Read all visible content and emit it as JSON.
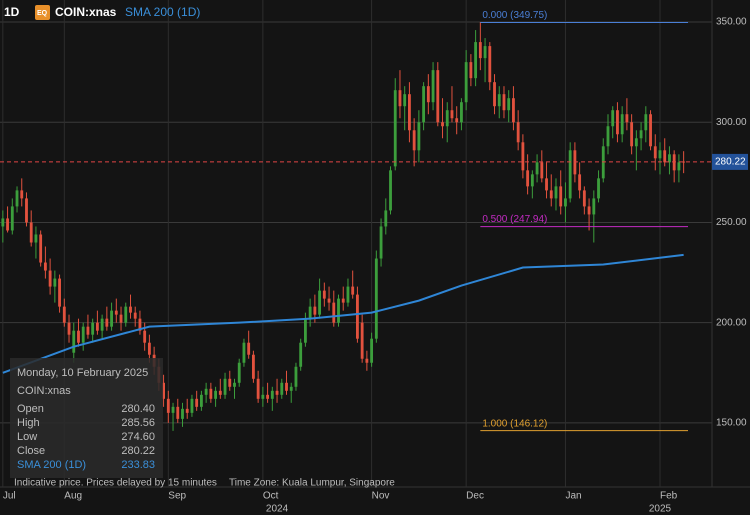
{
  "header": {
    "interval": "1D",
    "badge": "EQ",
    "symbol": "COIN:xnas",
    "indicator": "SMA 200 (1D)"
  },
  "chart_data": {
    "type": "candlestick",
    "up_color": "#3c9e3c",
    "down_color": "#e2523e",
    "grid": true,
    "xlim": [
      -0.6,
      150
    ],
    "ylim": [
      118,
      361
    ],
    "yticks": [
      {
        "value": 150,
        "label": "150.00"
      },
      {
        "value": 200,
        "label": "200.00"
      },
      {
        "value": 250,
        "label": "250.00"
      },
      {
        "value": 300,
        "label": "300.00"
      },
      {
        "value": 350,
        "label": "350.00"
      }
    ],
    "xticks": [
      {
        "value": 0,
        "label": "Jul"
      },
      {
        "value": 13,
        "label": "Aug"
      },
      {
        "value": 35,
        "label": "Sep"
      },
      {
        "value": 55,
        "label": "Oct"
      },
      {
        "value": 78,
        "label": "Nov"
      },
      {
        "value": 98,
        "label": "Dec"
      },
      {
        "value": 119,
        "label": "Jan"
      },
      {
        "value": 139,
        "label": "Feb"
      }
    ],
    "year_ticks": [
      {
        "value": 58,
        "label": "2024"
      },
      {
        "value": 139,
        "label": "2025"
      }
    ],
    "candles": [
      [
        248,
        256,
        240,
        252
      ],
      [
        252,
        258,
        245,
        246
      ],
      [
        246,
        262,
        244,
        258
      ],
      [
        258,
        268,
        255,
        266
      ],
      [
        266,
        272,
        258,
        262
      ],
      [
        262,
        265,
        248,
        250
      ],
      [
        250,
        256,
        238,
        240
      ],
      [
        240,
        248,
        232,
        244
      ],
      [
        244,
        246,
        228,
        230
      ],
      [
        230,
        238,
        222,
        226
      ],
      [
        226,
        232,
        214,
        218
      ],
      [
        218,
        226,
        210,
        222
      ],
      [
        222,
        224,
        205,
        208
      ],
      [
        208,
        212,
        198,
        200
      ],
      [
        200,
        204,
        190,
        194
      ],
      [
        185,
        200,
        180,
        196
      ],
      [
        196,
        202,
        188,
        190
      ],
      [
        190,
        200,
        186,
        198
      ],
      [
        198,
        204,
        192,
        194
      ],
      [
        194,
        202,
        190,
        200
      ],
      [
        200,
        206,
        194,
        196
      ],
      [
        196,
        204,
        192,
        202
      ],
      [
        202,
        208,
        196,
        198
      ],
      [
        198,
        210,
        196,
        206
      ],
      [
        206,
        212,
        200,
        204
      ],
      [
        204,
        208,
        196,
        200
      ],
      [
        200,
        210,
        198,
        208
      ],
      [
        208,
        214,
        202,
        205
      ],
      [
        205,
        208,
        198,
        202
      ],
      [
        202,
        206,
        194,
        196
      ],
      [
        196,
        200,
        186,
        190
      ],
      [
        190,
        194,
        180,
        184
      ],
      [
        184,
        188,
        174,
        178
      ],
      [
        178,
        182,
        166,
        170
      ],
      [
        170,
        174,
        158,
        162
      ],
      [
        162,
        166,
        150,
        155
      ],
      [
        155,
        160,
        146,
        158
      ],
      [
        158,
        162,
        150,
        152
      ],
      [
        152,
        160,
        148,
        157
      ],
      [
        157,
        162,
        152,
        155
      ],
      [
        155,
        164,
        153,
        162
      ],
      [
        162,
        166,
        156,
        158
      ],
      [
        158,
        166,
        156,
        164
      ],
      [
        164,
        170,
        160,
        167
      ],
      [
        167,
        170,
        160,
        162
      ],
      [
        162,
        168,
        158,
        166
      ],
      [
        166,
        172,
        162,
        164
      ],
      [
        164,
        175,
        162,
        172
      ],
      [
        172,
        176,
        166,
        168
      ],
      [
        168,
        172,
        162,
        170
      ],
      [
        170,
        182,
        168,
        180
      ],
      [
        180,
        192,
        178,
        190
      ],
      [
        190,
        196,
        182,
        184
      ],
      [
        184,
        186,
        170,
        172
      ],
      [
        172,
        176,
        160,
        162
      ],
      [
        162,
        168,
        158,
        164
      ],
      [
        164,
        170,
        160,
        162
      ],
      [
        162,
        168,
        156,
        166
      ],
      [
        166,
        172,
        160,
        164
      ],
      [
        164,
        172,
        162,
        170
      ],
      [
        170,
        176,
        164,
        166
      ],
      [
        166,
        170,
        160,
        168
      ],
      [
        168,
        180,
        166,
        178
      ],
      [
        178,
        192,
        176,
        190
      ],
      [
        190,
        205,
        188,
        202
      ],
      [
        202,
        212,
        198,
        208
      ],
      [
        208,
        214,
        200,
        204
      ],
      [
        204,
        222,
        202,
        216
      ],
      [
        216,
        220,
        208,
        212
      ],
      [
        212,
        218,
        206,
        210
      ],
      [
        210,
        216,
        198,
        200
      ],
      [
        200,
        214,
        198,
        212
      ],
      [
        212,
        218,
        206,
        210
      ],
      [
        210,
        222,
        208,
        218
      ],
      [
        218,
        226,
        212,
        214
      ],
      [
        214,
        218,
        190,
        192
      ],
      [
        200,
        204,
        180,
        182
      ],
      [
        182,
        186,
        176,
        180
      ],
      [
        180,
        195,
        178,
        192
      ],
      [
        192,
        236,
        190,
        232
      ],
      [
        232,
        252,
        228,
        248
      ],
      [
        248,
        262,
        244,
        256
      ],
      [
        256,
        278,
        254,
        276
      ],
      [
        278,
        322,
        276,
        316
      ],
      [
        316,
        326,
        302,
        308
      ],
      [
        308,
        318,
        296,
        314
      ],
      [
        314,
        320,
        290,
        296
      ],
      [
        296,
        302,
        278,
        286
      ],
      [
        286,
        306,
        280,
        300
      ],
      [
        300,
        320,
        296,
        318
      ],
      [
        318,
        324,
        304,
        310
      ],
      [
        310,
        330,
        306,
        326
      ],
      [
        326,
        330,
        298,
        300
      ],
      [
        300,
        312,
        292,
        298
      ],
      [
        298,
        310,
        290,
        306
      ],
      [
        306,
        318,
        300,
        302
      ],
      [
        302,
        308,
        294,
        300
      ],
      [
        300,
        312,
        296,
        310
      ],
      [
        310,
        336,
        306,
        330
      ],
      [
        330,
        334,
        318,
        322
      ],
      [
        322,
        346,
        318,
        340
      ],
      [
        340,
        350,
        326,
        332
      ],
      [
        332,
        342,
        320,
        338
      ],
      [
        338,
        340,
        316,
        320
      ],
      [
        320,
        324,
        304,
        308
      ],
      [
        308,
        318,
        302,
        314
      ],
      [
        314,
        318,
        302,
        306
      ],
      [
        306,
        316,
        300,
        312
      ],
      [
        312,
        318,
        296,
        300
      ],
      [
        300,
        306,
        286,
        290
      ],
      [
        290,
        294,
        272,
        276
      ],
      [
        276,
        284,
        264,
        268
      ],
      [
        268,
        276,
        262,
        274
      ],
      [
        274,
        284,
        270,
        280
      ],
      [
        280,
        286,
        270,
        272
      ],
      [
        272,
        280,
        262,
        266
      ],
      [
        266,
        274,
        258,
        262
      ],
      [
        262,
        272,
        256,
        268
      ],
      [
        268,
        276,
        254,
        258
      ],
      [
        258,
        270,
        250,
        262
      ],
      [
        262,
        290,
        260,
        286
      ],
      [
        286,
        290,
        270,
        274
      ],
      [
        274,
        280,
        262,
        266
      ],
      [
        266,
        268,
        254,
        258
      ],
      [
        258,
        262,
        246,
        254
      ],
      [
        254,
        266,
        240,
        262
      ],
      [
        262,
        276,
        260,
        272
      ],
      [
        272,
        292,
        270,
        288
      ],
      [
        288,
        304,
        284,
        298
      ],
      [
        298,
        308,
        292,
        306
      ],
      [
        306,
        310,
        290,
        294
      ],
      [
        294,
        308,
        290,
        304
      ],
      [
        304,
        312,
        296,
        300
      ],
      [
        300,
        304,
        284,
        288
      ],
      [
        288,
        296,
        276,
        292
      ],
      [
        292,
        300,
        286,
        296
      ],
      [
        296,
        308,
        290,
        304
      ],
      [
        304,
        306,
        286,
        288
      ],
      [
        288,
        294,
        276,
        282
      ],
      [
        282,
        290,
        274,
        286
      ],
      [
        286,
        292,
        278,
        280
      ],
      [
        280,
        288,
        274,
        284
      ],
      [
        284,
        286,
        270,
        276
      ],
      [
        276,
        284,
        270,
        280
      ],
      [
        280.4,
        285.56,
        274.6,
        280.22
      ]
    ],
    "sma": {
      "name": "SMA 200 (1D)",
      "color": "#2f86d6",
      "x": [
        0,
        15,
        31,
        50,
        65,
        78,
        88,
        97,
        110,
        127,
        144
      ],
      "values": [
        175,
        188,
        198,
        200,
        202,
        205,
        211,
        218.5,
        227.5,
        229,
        233.83
      ]
    },
    "fib": [
      {
        "label": "0.000 (349.75)",
        "value": 349.75,
        "color": "#4a7fd6",
        "from": 101
      },
      {
        "label": "0.500 (247.94)",
        "value": 247.94,
        "color": "#c42bc4",
        "from": 101
      },
      {
        "label": "1.000 (146.12)",
        "value": 146.12,
        "color": "#e0a030",
        "from": 101
      }
    ],
    "last_price": 280.22
  },
  "tooltip": {
    "date": "Monday, 10 February 2025",
    "symbol": "COIN:xnas",
    "rows": [
      {
        "label": "Open",
        "value": "280.40"
      },
      {
        "label": "High",
        "value": "285.56"
      },
      {
        "label": "Low",
        "value": "274.60"
      },
      {
        "label": "Close",
        "value": "280.22"
      },
      {
        "label": "SMA 200 (1D)",
        "value": "233.83"
      }
    ]
  },
  "footer": {
    "notice": "Indicative price. Prices delayed by 15 minutes",
    "timezone": "Time Zone: Kuala Lumpur, Singapore"
  }
}
